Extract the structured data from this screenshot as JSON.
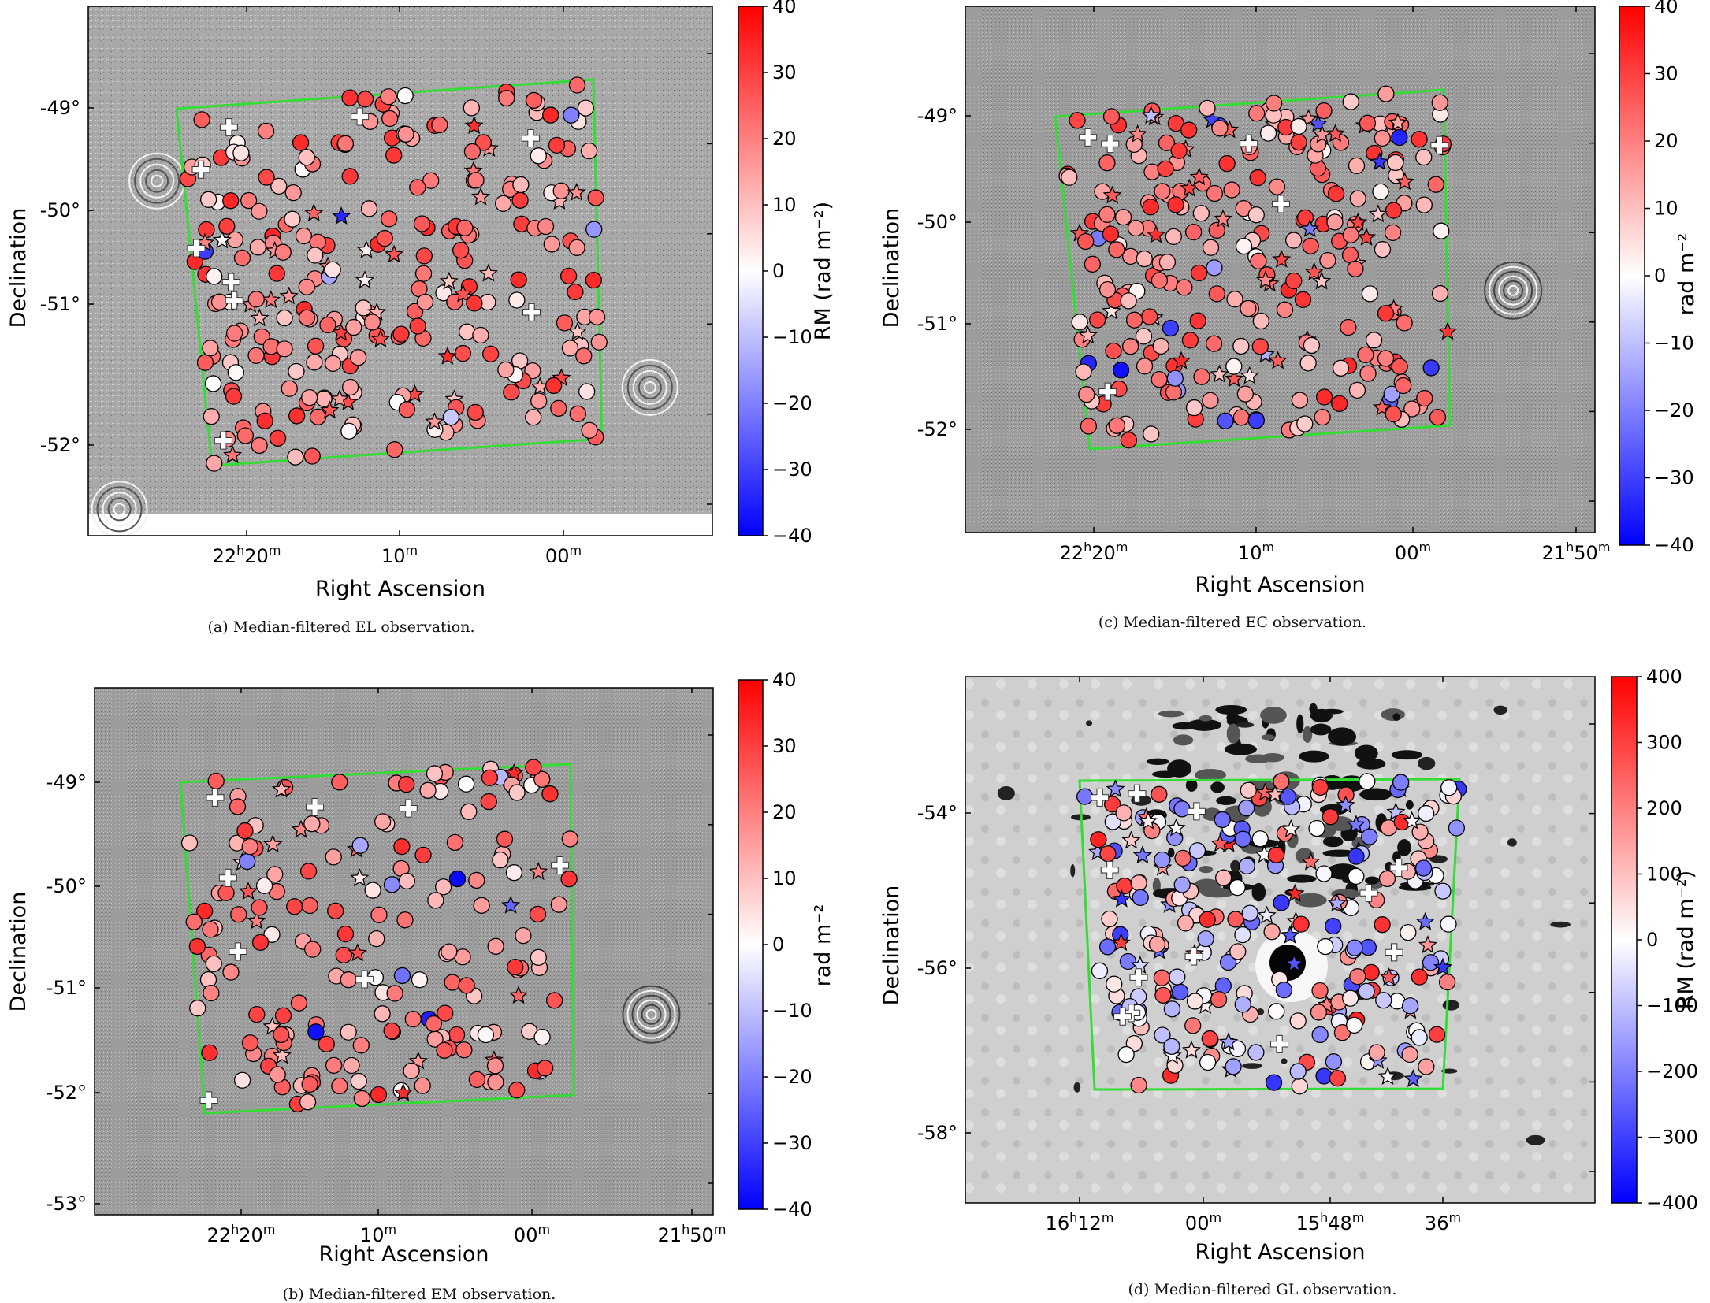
{
  "colors": {
    "polygon": "#33dd33",
    "cmap_low": "#0000ff",
    "cmap_mid": "#ffffff",
    "cmap_high": "#ff0000"
  },
  "panels": [
    {
      "id": "a",
      "caption": "(a) Median-filtered EL observation.",
      "xlabel": "Right Ascension",
      "ylabel": "Declination",
      "ra_ticks": [
        {
          "label": "22h20m",
          "h": "22",
          "m": "20"
        },
        {
          "label": "10m",
          "m": "10"
        },
        {
          "label": "00m",
          "m": "00"
        }
      ],
      "dec_ticks": [
        "-49°",
        "-50°",
        "-51°",
        "-52°"
      ],
      "colorbar_label": "RM (rad m⁻²)",
      "colorbar_ticks": [
        "40",
        "30",
        "20",
        "10",
        "0",
        "−10",
        "−20",
        "−30",
        "−40"
      ]
    },
    {
      "id": "b",
      "caption": "(b) Median-filtered EM observation.",
      "xlabel": "Right Ascension",
      "ylabel": "Declination",
      "ra_ticks": [
        {
          "label": "22h20m",
          "h": "22",
          "m": "20"
        },
        {
          "label": "10m",
          "m": "10"
        },
        {
          "label": "00m",
          "m": "00"
        },
        {
          "label": "21h50m",
          "h": "21",
          "m": "50"
        }
      ],
      "dec_ticks": [
        "-49°",
        "-50°",
        "-51°",
        "-52°",
        "-53°"
      ],
      "colorbar_label": "rad m⁻²",
      "colorbar_ticks": [
        "40",
        "30",
        "20",
        "10",
        "0",
        "−10",
        "−20",
        "−30",
        "−40"
      ]
    },
    {
      "id": "c",
      "caption": "(c) Median-filtered EC observation.",
      "xlabel": "Right Ascension",
      "ylabel": "Declination",
      "ra_ticks": [
        {
          "label": "22h20m",
          "h": "22",
          "m": "20"
        },
        {
          "label": "10m",
          "m": "10"
        },
        {
          "label": "00m",
          "m": "00"
        },
        {
          "label": "21h50m",
          "h": "21",
          "m": "50"
        }
      ],
      "dec_ticks": [
        "-49°",
        "-50°",
        "-51°",
        "-52°"
      ],
      "colorbar_label": "rad m⁻²",
      "colorbar_ticks": [
        "40",
        "30",
        "20",
        "10",
        "0",
        "−10",
        "−20",
        "−30",
        "−40"
      ]
    },
    {
      "id": "d",
      "caption": "(d) Median-filtered GL observation.",
      "xlabel": "Right Ascension",
      "ylabel": "Declination",
      "ra_ticks": [
        {
          "label": "16h12m",
          "h": "16",
          "m": "12"
        },
        {
          "label": "00m",
          "m": "00"
        },
        {
          "label": "15h48m",
          "h": "15",
          "m": "48"
        },
        {
          "label": "36m",
          "m": "36"
        }
      ],
      "dec_ticks": [
        "-54°",
        "-56°",
        "-58°"
      ],
      "colorbar_label": "RM (rad m⁻²)",
      "colorbar_ticks": [
        "400",
        "300",
        "200",
        "100",
        "0",
        "−100",
        "−200",
        "−300",
        "−400"
      ]
    }
  ],
  "chart_data": [
    {
      "type": "scatter",
      "title": "(a) Median-filtered EL observation.",
      "xlabel": "Right Ascension",
      "ylabel": "Declination",
      "colorbar": {
        "label": "RM (rad m⁻²)",
        "range": [
          -40,
          40
        ]
      },
      "markers": [
        "circle",
        "star",
        "plus"
      ],
      "note": "Sources coloured by RM, mostly +10 to +30 rad m^-2 with a few negative (blue) sources near the centre."
    },
    {
      "type": "scatter",
      "title": "(b) Median-filtered EM observation.",
      "xlabel": "Right Ascension",
      "ylabel": "Declination",
      "colorbar": {
        "label": "rad m⁻²",
        "range": [
          -40,
          40
        ]
      },
      "markers": [
        "circle",
        "star",
        "plus"
      ]
    },
    {
      "type": "scatter",
      "title": "(c) Median-filtered EC observation.",
      "xlabel": "Right Ascension",
      "ylabel": "Declination",
      "colorbar": {
        "label": "rad m⁻²",
        "range": [
          -40,
          40
        ]
      },
      "markers": [
        "circle",
        "star",
        "plus"
      ]
    },
    {
      "type": "scatter",
      "title": "(d) Median-filtered GL observation.",
      "xlabel": "Right Ascension",
      "ylabel": "Declination",
      "colorbar": {
        "label": "RM (rad m⁻²)",
        "range": [
          -400,
          400
        ]
      },
      "markers": [
        "circle",
        "star",
        "plus"
      ],
      "note": "Galactic field: mixed positive and negative RM, large negative population in lower half."
    }
  ]
}
